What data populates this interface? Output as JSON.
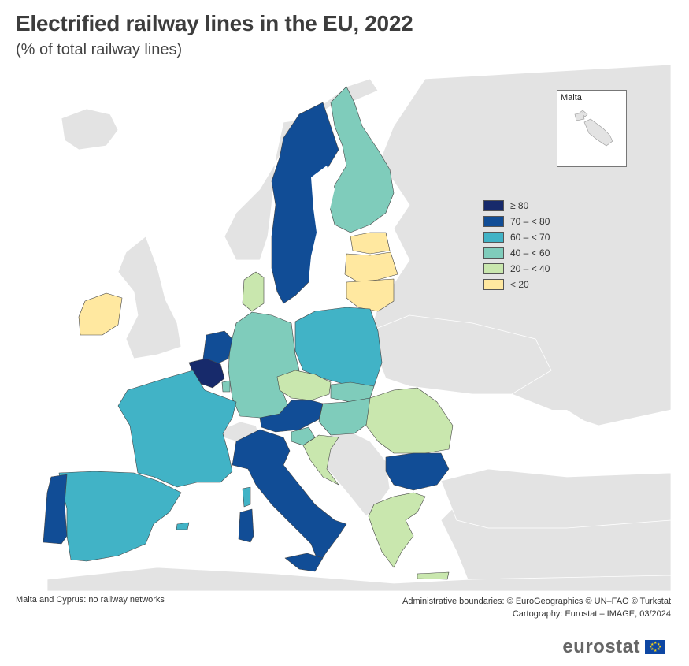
{
  "title": "Electrified railway lines in the EU, 2022",
  "subtitle": "(% of total railway lines)",
  "legend": [
    {
      "label": "≥ 80",
      "color": "#172a6b"
    },
    {
      "label": "70 – < 80",
      "color": "#114d96"
    },
    {
      "label": "60 – < 70",
      "color": "#41b3c6"
    },
    {
      "label": "40 – < 60",
      "color": "#7fccbb"
    },
    {
      "label": "20 – < 40",
      "color": "#c9e7ae"
    },
    {
      "label": "< 20",
      "color": "#ffe8a0"
    }
  ],
  "colors": {
    "land": "#e3e3e3",
    "sea": "#ffffff",
    "border": "#444444"
  },
  "inset": {
    "title": "Malta"
  },
  "footer": {
    "note": "Malta and Cyprus: no railway networks",
    "boundaries": "Administrative boundaries: © EuroGeographics © UN–FAO © Turkstat",
    "cartography": "Cartography: Eurostat – IMAGE, 03/2024"
  },
  "logo": {
    "text": "eurostat"
  }
}
